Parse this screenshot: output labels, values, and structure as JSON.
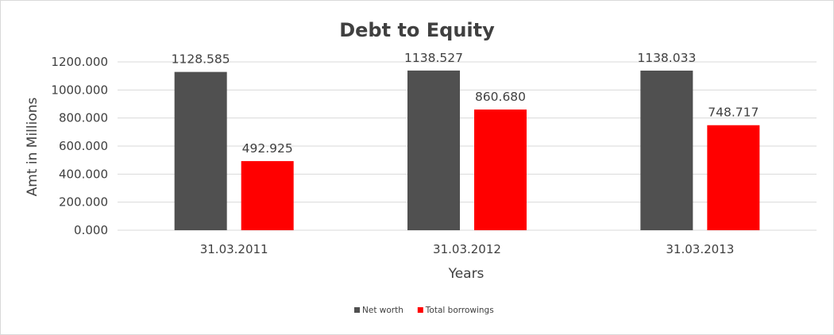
{
  "chart_data": {
    "type": "bar",
    "title": "Debt to Equity",
    "xlabel": "Years",
    "ylabel": "Amt in Millions",
    "categories": [
      "31.03.2011",
      "31.03.2012",
      "31.03.2013"
    ],
    "series": [
      {
        "name": "Net worth",
        "color": "#505050",
        "values": [
          1128.585,
          1138.527,
          1138.033
        ],
        "labels": [
          "1128.585",
          "1138.527",
          "1138.033"
        ]
      },
      {
        "name": "Total borrowings",
        "color": "#ff0000",
        "values": [
          492.925,
          860.68,
          748.717
        ],
        "labels": [
          "492.925",
          "860.680",
          "748.717"
        ]
      }
    ],
    "ylim": [
      0,
      1200
    ],
    "yticks": [
      {
        "value": 0,
        "label": "0.000"
      },
      {
        "value": 200,
        "label": "200.000"
      },
      {
        "value": 400,
        "label": "400.000"
      },
      {
        "value": 600,
        "label": "600.000"
      },
      {
        "value": 800,
        "label": "800.000"
      },
      {
        "value": 1000,
        "label": "1000.000"
      },
      {
        "value": 1200,
        "label": "1200.000"
      }
    ],
    "grid": true,
    "legend_position": "bottom"
  }
}
